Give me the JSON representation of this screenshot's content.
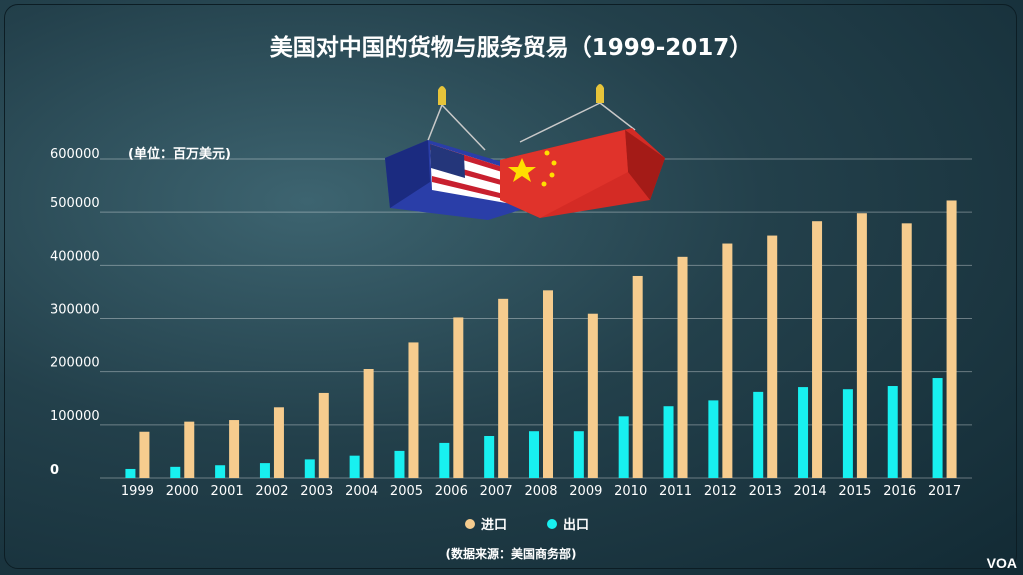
{
  "chart_data": {
    "type": "bar",
    "title": "美国对中国的货物与服务贸易（1999-2017）",
    "unit_label": "(单位：百万美元)",
    "y_tick_labels": [
      "0",
      "100000",
      "200000",
      "300000",
      "400000",
      "500000",
      "600000"
    ],
    "ylim": [
      0,
      600000
    ],
    "grid": true,
    "legend_position": "bottom",
    "categories": [
      "1999",
      "2000",
      "2001",
      "2002",
      "2003",
      "2004",
      "2005",
      "2006",
      "2007",
      "2008",
      "2009",
      "2010",
      "2011",
      "2012",
      "2013",
      "2014",
      "2015",
      "2016",
      "2017"
    ],
    "series": [
      {
        "name": "进口",
        "color": "#f6cc8e",
        "values": [
          87000,
          106000,
          109000,
          133000,
          160000,
          205000,
          255000,
          302000,
          337000,
          353000,
          309000,
          380000,
          416000,
          441000,
          456000,
          483000,
          498000,
          479000,
          522000
        ]
      },
      {
        "name": "出口",
        "color": "#18f0f0",
        "values": [
          17000,
          21000,
          24000,
          28000,
          35000,
          42000,
          51000,
          66000,
          79000,
          88000,
          88000,
          116000,
          135000,
          146000,
          162000,
          171000,
          167000,
          173000,
          188000
        ]
      }
    ],
    "source": "(数据来源：美国商务部)"
  },
  "brand": {
    "logo": "VOA"
  }
}
